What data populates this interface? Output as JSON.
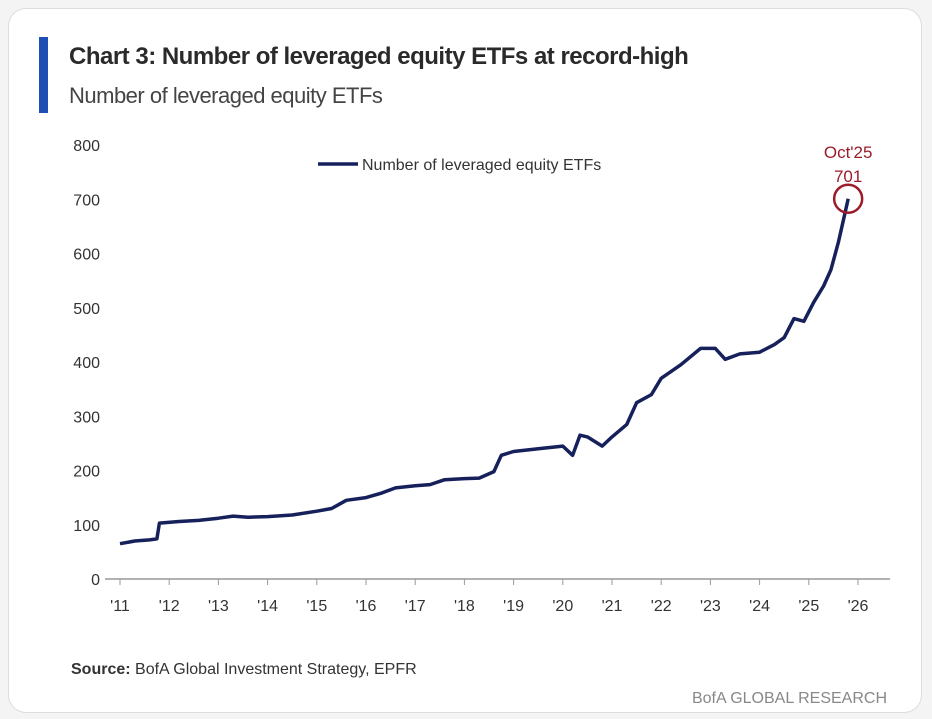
{
  "chart_data": {
    "type": "line",
    "title": "Chart 3: Number of leveraged equity ETFs at record-high",
    "subtitle": "Number of leveraged equity ETFs",
    "xlabel": "",
    "ylabel": "",
    "ylim": [
      0,
      800
    ],
    "xlim": [
      2011,
      2026
    ],
    "yticks": [
      "0",
      "100",
      "200",
      "300",
      "400",
      "500",
      "600",
      "700",
      "800"
    ],
    "xticks": [
      "'11",
      "'12",
      "'13",
      "'14",
      "'15",
      "'16",
      "'17",
      "'18",
      "'19",
      "'20",
      "'21",
      "'22",
      "'23",
      "'24",
      "'25",
      "'26"
    ],
    "legend": "top-center",
    "grid": false,
    "series": [
      {
        "name": "Number of leveraged equity ETFs",
        "color": "#16215c",
        "x": [
          2011.0,
          2011.3,
          2011.6,
          2011.75,
          2011.8,
          2012.2,
          2012.6,
          2013.0,
          2013.3,
          2013.6,
          2014.0,
          2014.5,
          2015.0,
          2015.3,
          2015.6,
          2016.0,
          2016.3,
          2016.6,
          2017.0,
          2017.3,
          2017.6,
          2018.0,
          2018.3,
          2018.6,
          2018.75,
          2019.0,
          2019.5,
          2020.0,
          2020.2,
          2020.35,
          2020.5,
          2020.8,
          2021.0,
          2021.3,
          2021.5,
          2021.8,
          2022.0,
          2022.4,
          2022.8,
          2023.1,
          2023.3,
          2023.6,
          2024.0,
          2024.3,
          2024.5,
          2024.7,
          2024.9,
          2025.1,
          2025.3,
          2025.45,
          2025.6,
          2025.7,
          2025.8
        ],
        "values": [
          65,
          70,
          72,
          74,
          103,
          106,
          108,
          112,
          116,
          114,
          115,
          118,
          125,
          130,
          145,
          150,
          158,
          168,
          172,
          174,
          183,
          185,
          186,
          198,
          228,
          235,
          240,
          245,
          228,
          265,
          262,
          245,
          262,
          285,
          325,
          340,
          370,
          395,
          425,
          425,
          405,
          415,
          418,
          432,
          445,
          480,
          475,
          510,
          540,
          570,
          620,
          660,
          701
        ]
      }
    ],
    "annotations": [
      {
        "label_top": "Oct'25",
        "label_value": "701",
        "x": 2025.8,
        "y": 701,
        "color": "#9b1c2a"
      }
    ],
    "source_label": "Source:",
    "source_text": "BofA Global Investment Strategy, EPFR",
    "brand": "BofA GLOBAL RESEARCH"
  }
}
